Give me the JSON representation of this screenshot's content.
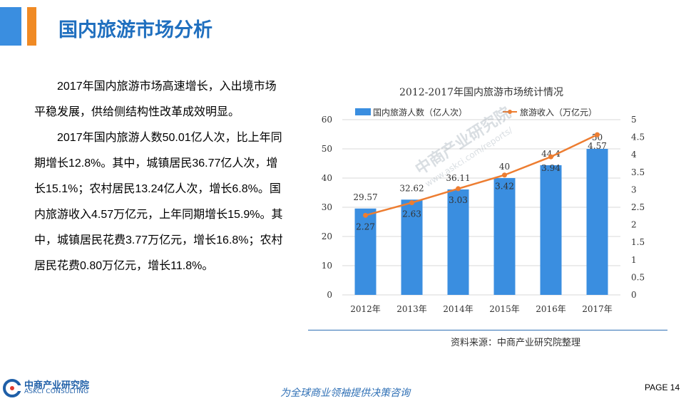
{
  "header": {
    "title": "国内旅游市场分析"
  },
  "body": {
    "paragraph1": "2017年国内旅游市场高速增长，入出境市场平稳发展，供给侧结构性改革成效明显。",
    "paragraph2": "2017年国内旅游人数50.01亿人次，比上年同期增长12.8%。其中，城镇居民36.77亿人次，增长15.1%；农村居民13.24亿人次，增长6.8%。国内旅游收入4.57万亿元，上年同期增长15.9%。其中，城镇居民花费3.77万亿元，增长16.8%；农村居民花费0.80万亿元，增长11.8%。"
  },
  "chart_data": {
    "type": "bar",
    "title": "2012-2017年国内旅游市场统计情况",
    "categories": [
      "2012年",
      "2013年",
      "2014年",
      "2015年",
      "2016年",
      "2017年"
    ],
    "series": [
      {
        "name": "国内旅游人数（亿人次）",
        "type": "bar",
        "axis": "left",
        "color": "#3a8ee0",
        "values": [
          29.57,
          32.62,
          36.11,
          40,
          44.4,
          50
        ]
      },
      {
        "name": "旅游收入（万亿元）",
        "type": "line",
        "axis": "right",
        "color": "#ed7d31",
        "values": [
          2.27,
          2.63,
          3.03,
          3.42,
          3.94,
          4.57
        ]
      }
    ],
    "ylim_left": [
      0,
      60
    ],
    "yticks_left": [
      0,
      10,
      20,
      30,
      40,
      50,
      60
    ],
    "ylim_right": [
      0,
      5
    ],
    "yticks_right": [
      "0",
      "0.5",
      "1",
      "1.5",
      "2",
      "2.5",
      "3",
      "3.5",
      "4",
      "4.5",
      "5"
    ],
    "legend": "top",
    "grid": true
  },
  "source": "资料来源：中商产业研究院整理",
  "footer": {
    "logo_cn": "中商产业研究院",
    "logo_en": "ASKCI CONSULTING",
    "slogan": "为全球商业领袖提供决策咨询",
    "page": "PAGE  14"
  },
  "watermark": {
    "line1": "中商产业研究院",
    "line2": "www.askci.com/reports/"
  }
}
